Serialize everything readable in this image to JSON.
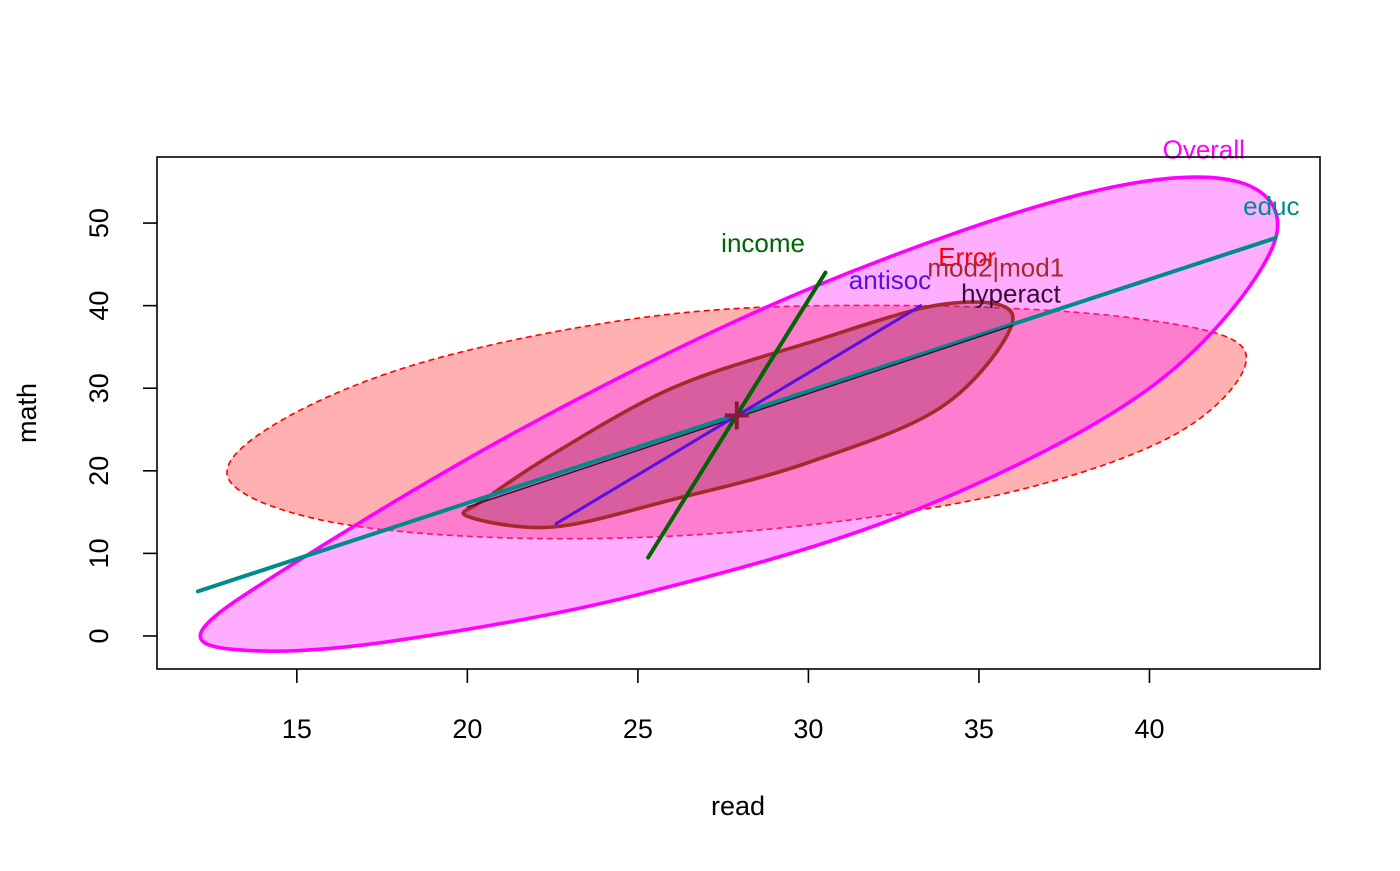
{
  "chart_data": {
    "type": "scatter",
    "title": "",
    "xlabel": "read",
    "ylabel": "math",
    "xlim": [
      10.9,
      45.0
    ],
    "ylim": [
      -4.0,
      58.0
    ],
    "xticks": [
      "15",
      "20",
      "25",
      "30",
      "35",
      "40"
    ],
    "yticks": [
      "0",
      "10",
      "20",
      "30",
      "40",
      "50"
    ],
    "grid": false,
    "center": {
      "x": 27.9,
      "y": 26.7,
      "color": "#8B1A3A"
    },
    "ellipses": [
      {
        "name": "Error",
        "label_pos": [
          35.5,
          44.8
        ],
        "color": "#FF0000",
        "fill": "#FF5050",
        "fill_opacity": 0.45,
        "dashed": true,
        "points": [
          [
            13.0,
            19.0
          ],
          [
            16.0,
            13.8
          ],
          [
            22.0,
            11.8
          ],
          [
            29.0,
            13.0
          ],
          [
            36.0,
            17.5
          ],
          [
            41.0,
            25.0
          ],
          [
            42.8,
            34.5
          ],
          [
            39.5,
            38.5
          ],
          [
            33.0,
            40.0
          ],
          [
            26.0,
            39.0
          ],
          [
            19.0,
            33.5
          ],
          [
            14.5,
            26.0
          ]
        ]
      },
      {
        "name": "Overall",
        "label_pos": [
          42.8,
          57.8
        ],
        "color": "#FF00FF",
        "fill": "#FF33FF",
        "fill_opacity": 0.4,
        "dashed": false,
        "points": [
          [
            12.2,
            0.5
          ],
          [
            13.8,
            -1.8
          ],
          [
            18.0,
            -0.5
          ],
          [
            25.0,
            5.0
          ],
          [
            33.0,
            15.0
          ],
          [
            40.0,
            30.0
          ],
          [
            43.6,
            47.0
          ],
          [
            42.6,
            55.0
          ],
          [
            38.0,
            53.5
          ],
          [
            30.0,
            42.0
          ],
          [
            22.0,
            26.0
          ],
          [
            15.0,
            9.0
          ]
        ]
      },
      {
        "name": "mod2|mod1",
        "label_pos": [
          37.5,
          43.5
        ],
        "color": "#A52A2A",
        "fill": "#A0305A",
        "fill_opacity": 0.4,
        "dashed": false,
        "points": [
          [
            20.0,
            14.5
          ],
          [
            22.5,
            13.2
          ],
          [
            26.0,
            16.5
          ],
          [
            30.0,
            21.0
          ],
          [
            34.0,
            28.0
          ],
          [
            36.0,
            38.5
          ],
          [
            34.0,
            40.2
          ],
          [
            30.0,
            35.5
          ],
          [
            26.0,
            30.0
          ],
          [
            22.5,
            22.0
          ],
          [
            20.5,
            16.5
          ]
        ]
      }
    ],
    "segments": [
      {
        "name": "educ",
        "label_pos": [
          44.4,
          51.0
        ],
        "color": "#008B8B",
        "width": 4,
        "from": [
          12.1,
          5.4
        ],
        "to": [
          43.7,
          48.2
        ]
      },
      {
        "name": "hyperact",
        "label_pos": [
          37.4,
          40.4
        ],
        "color": "#3A0A3A",
        "width": 1.4,
        "from": [
          20.0,
          15.6
        ],
        "to": [
          36.0,
          37.6
        ]
      },
      {
        "name": "antisoc",
        "label_pos": [
          33.6,
          42.0
        ],
        "color": "#5A10E0",
        "width": 3,
        "from": [
          22.6,
          13.6
        ],
        "to": [
          33.3,
          40.0
        ]
      },
      {
        "name": "income",
        "label_pos": [
          29.9,
          46.5
        ],
        "color": "#006400",
        "width": 4,
        "from": [
          25.3,
          9.5
        ],
        "to": [
          30.5,
          44.0
        ]
      }
    ]
  }
}
